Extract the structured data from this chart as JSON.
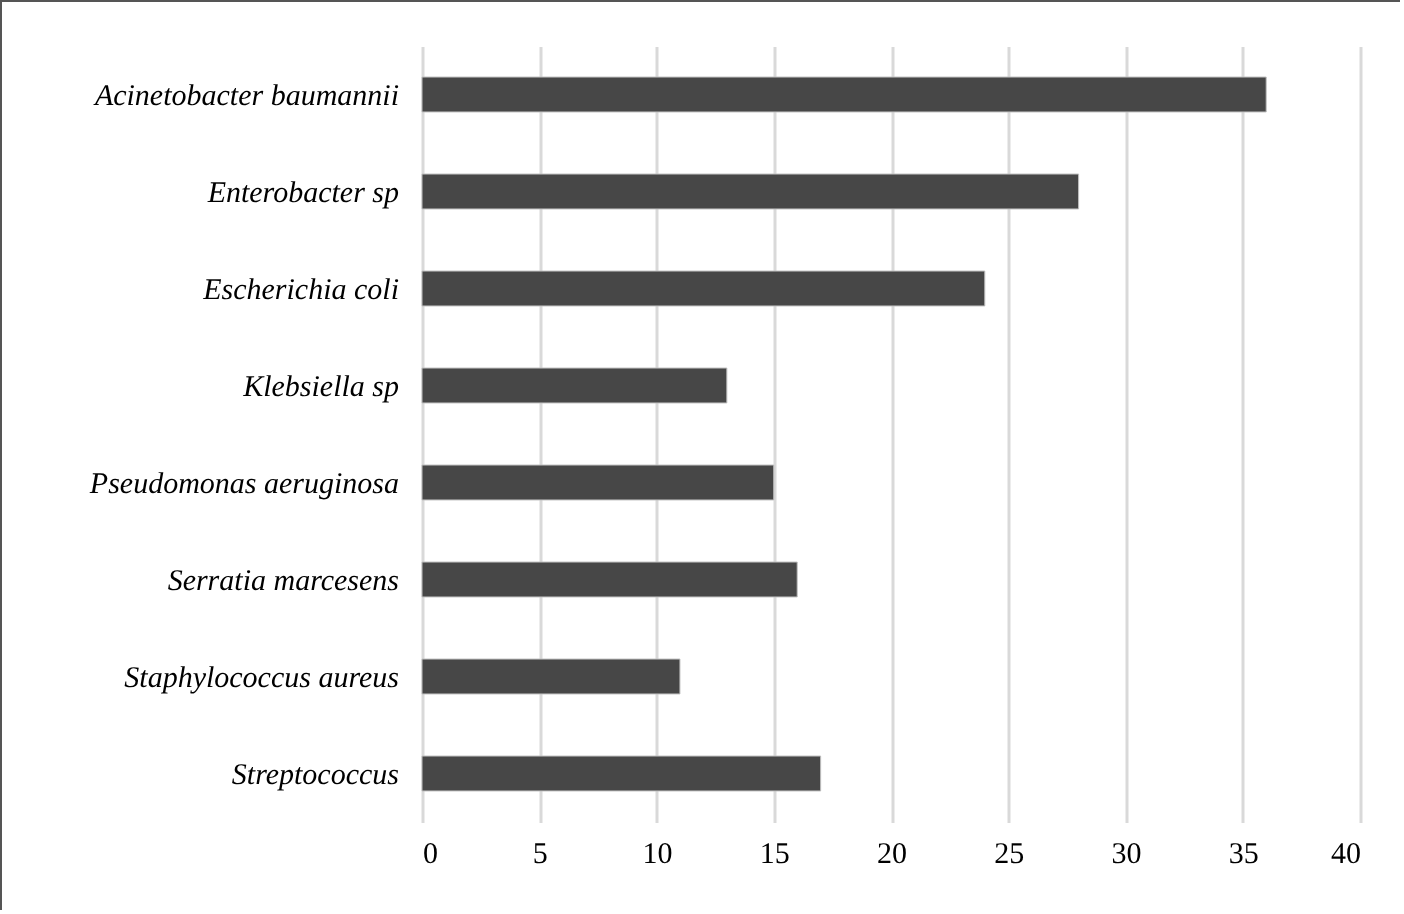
{
  "chart_data": {
    "type": "bar",
    "orientation": "horizontal",
    "categories": [
      "Acinetobacter baumannii",
      "Enterobacter sp",
      "Escherichia coli",
      "Klebsiella sp",
      "Pseudomonas aeruginosa",
      "Serratia marcesens",
      "Staphylococcus aureus",
      "Streptococcus"
    ],
    "values": [
      36,
      28,
      24,
      13,
      15,
      16,
      11,
      17
    ],
    "color": "#474747",
    "xlim": [
      0,
      40
    ],
    "xticks": [
      0,
      5,
      10,
      15,
      20,
      25,
      30,
      35,
      40
    ],
    "grid": "x"
  }
}
